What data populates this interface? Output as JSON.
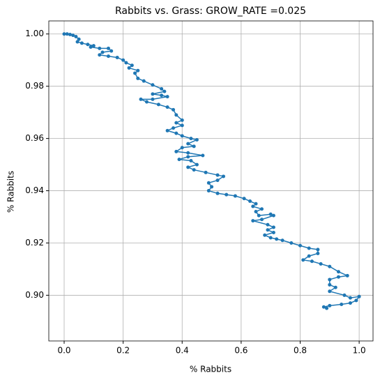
{
  "chart_data": {
    "type": "line",
    "title": "Rabbits vs. Grass: GROW_RATE =0.025",
    "xlabel": "% Rabbits",
    "ylabel": "% Rabbits",
    "x": [
      0,
      0.01,
      0.02,
      0.03,
      0.04,
      0.05,
      0.045,
      0.06,
      0.08,
      0.1,
      0.09,
      0.12,
      0.15,
      0.16,
      0.13,
      0.12,
      0.15,
      0.18,
      0.2,
      0.21,
      0.23,
      0.22,
      0.25,
      0.24,
      0.25,
      0.27,
      0.3,
      0.33,
      0.34,
      0.3,
      0.33,
      0.35,
      0.3,
      0.26,
      0.28,
      0.32,
      0.35,
      0.37,
      0.38,
      0.4,
      0.38,
      0.4,
      0.37,
      0.35,
      0.38,
      0.4,
      0.43,
      0.45,
      0.42,
      0.44,
      0.4,
      0.38,
      0.42,
      0.47,
      0.42,
      0.39,
      0.43,
      0.45,
      0.42,
      0.44,
      0.48,
      0.52,
      0.54,
      0.52,
      0.49,
      0.5,
      0.49,
      0.52,
      0.55,
      0.58,
      0.61,
      0.63,
      0.65,
      0.64,
      0.67,
      0.65,
      0.66,
      0.7,
      0.71,
      0.67,
      0.64,
      0.69,
      0.71,
      0.69,
      0.71,
      0.68,
      0.7,
      0.72,
      0.74,
      0.77,
      0.8,
      0.83,
      0.86,
      0.86,
      0.83,
      0.81,
      0.84,
      0.87,
      0.9,
      0.93,
      0.96,
      0.93,
      0.9,
      0.9,
      0.92,
      0.9,
      0.95,
      0.97,
      1.0,
      0.99,
      0.97,
      0.94,
      0.9,
      0.88,
      0.89
    ],
    "series": [
      {
        "name": "Rabbits",
        "color": "#1f77b4",
        "values": [
          1.0,
          1.0,
          0.9998,
          0.9995,
          0.999,
          0.998,
          0.997,
          0.9965,
          0.996,
          0.9955,
          0.995,
          0.9945,
          0.9945,
          0.9935,
          0.993,
          0.992,
          0.9915,
          0.991,
          0.99,
          0.989,
          0.988,
          0.987,
          0.986,
          0.985,
          0.983,
          0.982,
          0.9805,
          0.979,
          0.978,
          0.977,
          0.9765,
          0.976,
          0.975,
          0.975,
          0.974,
          0.973,
          0.972,
          0.971,
          0.969,
          0.967,
          0.966,
          0.965,
          0.964,
          0.963,
          0.962,
          0.961,
          0.96,
          0.9595,
          0.958,
          0.957,
          0.9565,
          0.955,
          0.9545,
          0.9535,
          0.953,
          0.952,
          0.9515,
          0.95,
          0.949,
          0.948,
          0.947,
          0.946,
          0.9455,
          0.944,
          0.943,
          0.9415,
          0.94,
          0.939,
          0.9385,
          0.938,
          0.937,
          0.936,
          0.935,
          0.934,
          0.933,
          0.932,
          0.9305,
          0.931,
          0.9305,
          0.929,
          0.9285,
          0.927,
          0.926,
          0.925,
          0.924,
          0.923,
          0.922,
          0.9215,
          0.921,
          0.92,
          0.919,
          0.918,
          0.9175,
          0.916,
          0.915,
          0.9135,
          0.913,
          0.912,
          0.911,
          0.909,
          0.9075,
          0.907,
          0.906,
          0.904,
          0.903,
          0.9015,
          0.9,
          0.899,
          0.8995,
          0.898,
          0.897,
          0.8965,
          0.896,
          0.8955,
          0.895
        ]
      }
    ],
    "xlim": [
      -0.052,
      1.047
    ],
    "xticks": [
      {
        "value": 0,
        "label": "0.0"
      },
      {
        "value": 0.2,
        "label": "0.2"
      },
      {
        "value": 0.4,
        "label": "0.4"
      },
      {
        "value": 0.6,
        "label": "0.6"
      },
      {
        "value": 0.8,
        "label": "0.8"
      },
      {
        "value": 1,
        "label": "1.0"
      }
    ],
    "ylim": [
      0.8825,
      1.005
    ],
    "yticks": [
      {
        "value": 0.9,
        "label": "0.90"
      },
      {
        "value": 0.92,
        "label": "0.92"
      },
      {
        "value": 0.94,
        "label": "0.94"
      },
      {
        "value": 0.96,
        "label": "0.96"
      },
      {
        "value": 0.98,
        "label": "0.98"
      },
      {
        "value": 1,
        "label": "1.00"
      }
    ],
    "grid": true
  }
}
